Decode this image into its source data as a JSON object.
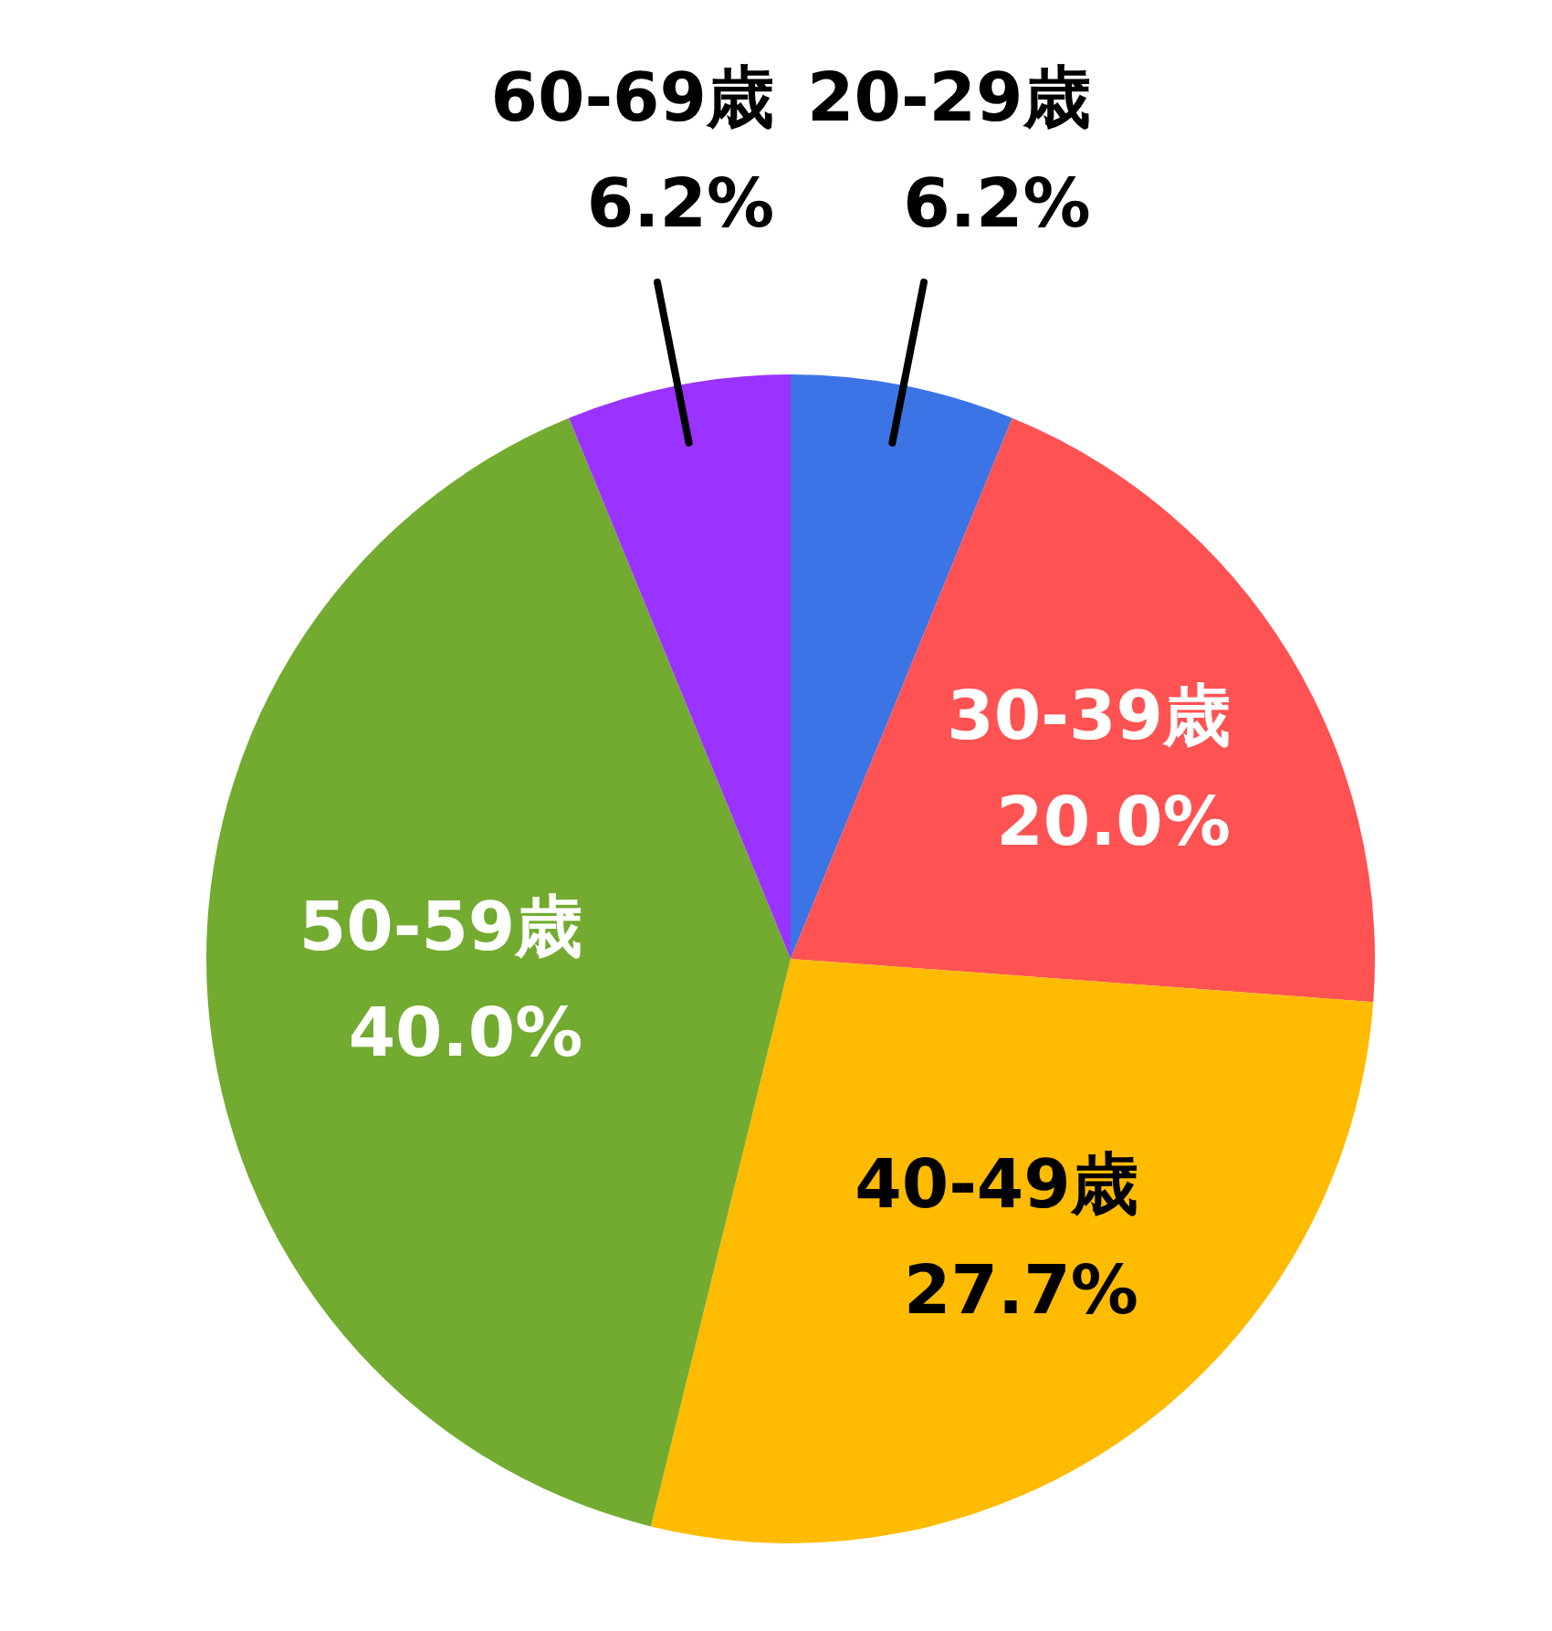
{
  "chart_data": {
    "type": "pie",
    "categories": [
      "20-29歳",
      "30-39歳",
      "40-49歳",
      "50-59歳",
      "60-69歳"
    ],
    "values": [
      6.2,
      20.0,
      27.7,
      40.0,
      6.2
    ],
    "colors": [
      "#3c74e6",
      "#ff5252",
      "#ffbb00",
      "#72ab2f",
      "#9a33ff"
    ],
    "value_labels": [
      "6.2%",
      "20.0%",
      "27.7%",
      "40.0%",
      "6.2%"
    ],
    "legend": false
  }
}
